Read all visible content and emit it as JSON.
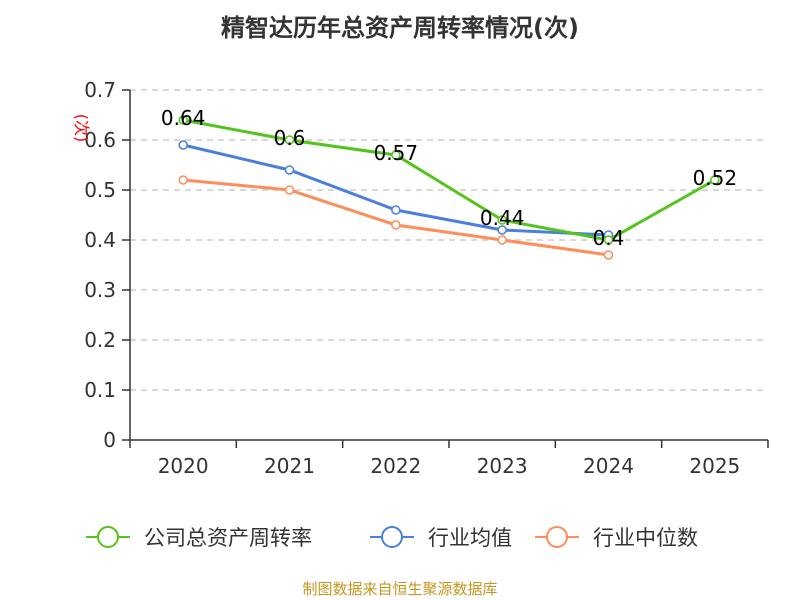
{
  "chart_data": {
    "type": "line",
    "title": "精智达历年总资产周转率情况(次)",
    "ylabel": "(次)",
    "xlabel": "",
    "categories": [
      "2020",
      "2021",
      "2022",
      "2023",
      "2024",
      "2025"
    ],
    "ylim": [
      0,
      0.7
    ],
    "yticks": [
      "0",
      "0.1",
      "0.2",
      "0.3",
      "0.4",
      "0.5",
      "0.6",
      "0.7"
    ],
    "grid": true,
    "legend_position": "bottom",
    "series": [
      {
        "name": "公司总资产周转率",
        "color": "#52c41a",
        "values": [
          0.64,
          0.6,
          0.57,
          0.44,
          0.4,
          0.52
        ],
        "labels": [
          "0.64",
          "0.6",
          "0.57",
          "0.44",
          "0.4",
          "0.52"
        ]
      },
      {
        "name": "行业均值",
        "color": "#4a7fe0",
        "values": [
          0.59,
          0.54,
          0.46,
          0.42,
          0.41,
          null
        ]
      },
      {
        "name": "行业中位数",
        "color": "#ff8c5a",
        "values": [
          0.52,
          0.5,
          0.43,
          0.4,
          0.37,
          null
        ]
      }
    ]
  },
  "source": "制图数据来自恒生聚源数据库"
}
